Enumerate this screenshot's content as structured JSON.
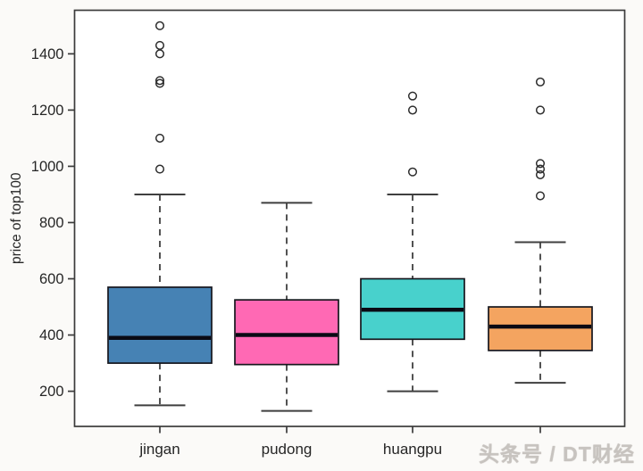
{
  "watermark": {
    "text": "头条号 / DT财经"
  },
  "colors": {
    "frame": "#3b3b3b",
    "text": "#262626",
    "whisker": "#3f3f3f",
    "box_border": "#16161d",
    "median": "#0a0a14",
    "outlier": "#2e2e2e",
    "plot_bg": "#ffffff"
  },
  "chart_data": {
    "type": "boxplot",
    "title": "",
    "xlabel": "",
    "ylabel": "price of top100",
    "ylim": [
      75,
      1555
    ],
    "y_ticks": [
      200,
      400,
      600,
      800,
      1000,
      1200,
      1400
    ],
    "grid": false,
    "legend": "none",
    "categories": [
      "jingan",
      "pudong",
      "huangpu",
      ""
    ],
    "series": [
      {
        "name": "jingan",
        "color": "#4682B4",
        "whisker_low": 150,
        "q1": 300,
        "median": 390,
        "q3": 570,
        "whisker_high": 900,
        "outliers": [
          990,
          1100,
          1295,
          1305,
          1400,
          1430,
          1500
        ]
      },
      {
        "name": "pudong",
        "color": "#FF69B4",
        "whisker_low": 130,
        "q1": 295,
        "median": 400,
        "q3": 525,
        "whisker_high": 870,
        "outliers": []
      },
      {
        "name": "huangpu",
        "color": "#48D1CC",
        "whisker_low": 200,
        "q1": 385,
        "median": 490,
        "q3": 600,
        "whisker_high": 900,
        "outliers": [
          980,
          1200,
          1250
        ]
      },
      {
        "name": "",
        "color": "#F4A460",
        "whisker_low": 230,
        "q1": 345,
        "median": 430,
        "q3": 500,
        "whisker_high": 730,
        "outliers": [
          895,
          970,
          990,
          1010,
          1200,
          1300
        ]
      }
    ]
  }
}
